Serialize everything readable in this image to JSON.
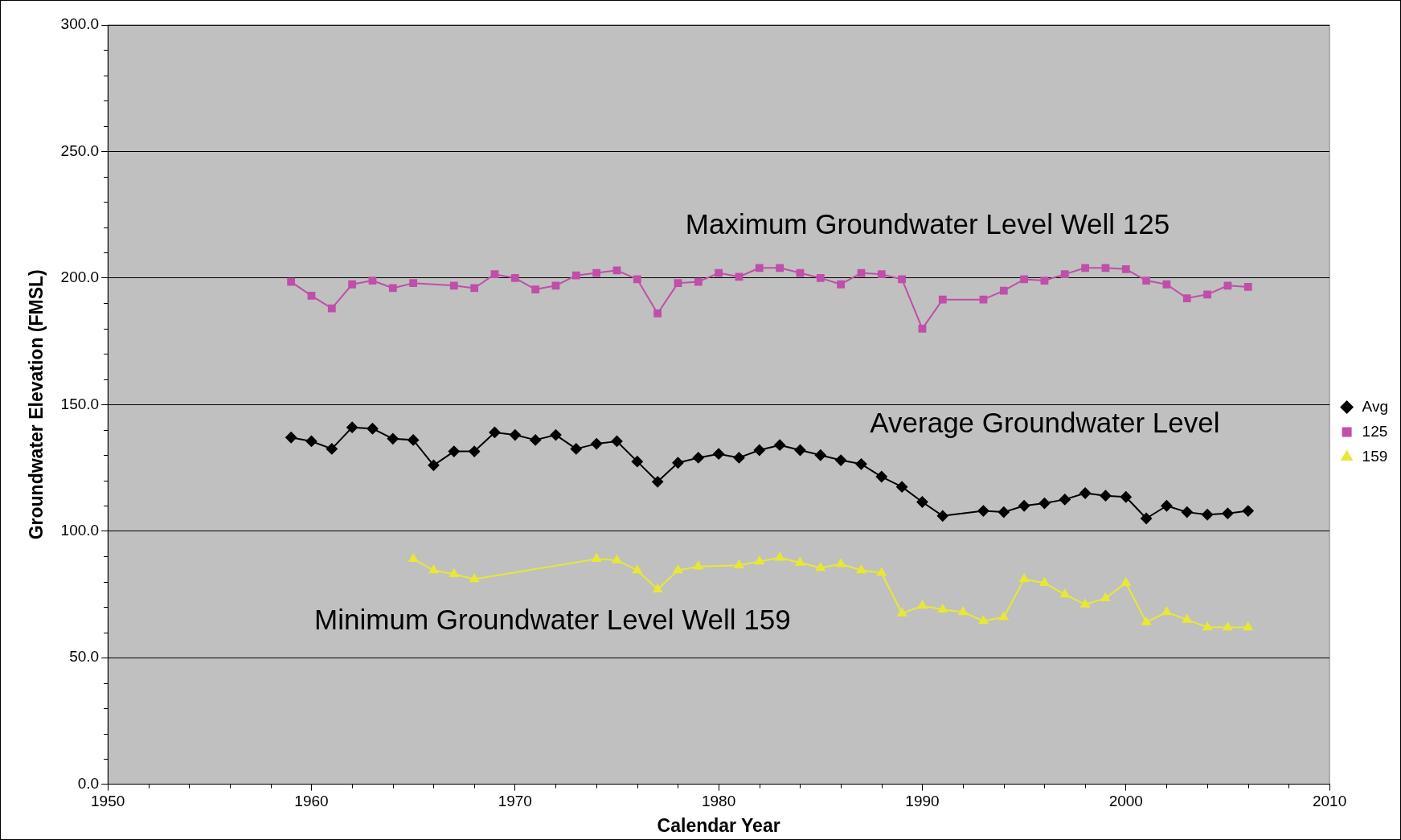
{
  "chart_data": {
    "type": "line",
    "xlabel": "Calendar Year",
    "ylabel": "Groundwater Elevation (FMSL)",
    "xlim": [
      1950,
      2010
    ],
    "xticks": [
      1950,
      1960,
      1970,
      1980,
      1990,
      2000,
      2010
    ],
    "ylim": [
      0,
      300
    ],
    "yticks": [
      {
        "value": 0,
        "label": "0.0"
      },
      {
        "value": 50,
        "label": "50.0"
      },
      {
        "value": 100,
        "label": "100.0"
      },
      {
        "value": 150,
        "label": "150.0"
      },
      {
        "value": 200,
        "label": "200.0"
      },
      {
        "value": 250,
        "label": "250.0"
      },
      {
        "value": 300,
        "label": "300.0"
      }
    ],
    "grid": "y",
    "legend": "right",
    "line_style": "solid",
    "series": [
      {
        "name": "Avg",
        "color": "#000000",
        "marker": "diamond",
        "x": [
          1959,
          1960,
          1961,
          1962,
          1963,
          1964,
          1965,
          1966,
          1967,
          1968,
          1969,
          1970,
          1971,
          1972,
          1973,
          1974,
          1975,
          1976,
          1977,
          1978,
          1979,
          1980,
          1981,
          1982,
          1983,
          1984,
          1985,
          1986,
          1987,
          1988,
          1989,
          1990,
          1991,
          1993,
          1994,
          1995,
          1996,
          1997,
          1998,
          1999,
          2000,
          2001,
          2002,
          2003,
          2004,
          2005,
          2006
        ],
        "values": [
          137,
          135.5,
          132.5,
          141,
          140.5,
          136.5,
          136,
          126,
          131.5,
          131.5,
          139,
          138,
          136,
          138,
          132.5,
          134.5,
          135.5,
          127.5,
          119.5,
          127,
          129,
          130.5,
          129,
          132,
          134,
          132,
          130,
          128,
          126.5,
          121.5,
          117.5,
          111.5,
          106,
          108,
          107.5,
          110,
          111,
          112.5,
          115,
          114,
          113.5,
          105,
          110,
          107.5,
          106.5,
          107,
          108
        ]
      },
      {
        "name": "125",
        "color": "#bf4fa8",
        "marker": "square",
        "x": [
          1959,
          1960,
          1961,
          1962,
          1963,
          1964,
          1965,
          1967,
          1968,
          1969,
          1970,
          1971,
          1972,
          1973,
          1974,
          1975,
          1976,
          1977,
          1978,
          1979,
          1980,
          1981,
          1982,
          1983,
          1984,
          1985,
          1986,
          1987,
          1988,
          1989,
          1990,
          1991,
          1993,
          1994,
          1995,
          1996,
          1997,
          1998,
          1999,
          2000,
          2001,
          2002,
          2003,
          2004,
          2005,
          2006
        ],
        "values": [
          198.5,
          193,
          188,
          197.5,
          199,
          196,
          198,
          197,
          196,
          201.5,
          200,
          195.5,
          197,
          201,
          202,
          203,
          199.5,
          186,
          198,
          198.5,
          202,
          200.5,
          204,
          204,
          202,
          200,
          197.5,
          202,
          201.5,
          199.5,
          180,
          191.5,
          191.5,
          195,
          199.5,
          199,
          201.5,
          204,
          204,
          203.5,
          199,
          197.5,
          192,
          193.5,
          197,
          196.5
        ]
      },
      {
        "name": "159",
        "color": "#e8e835",
        "marker": "triangle",
        "x": [
          1965,
          1966,
          1967,
          1968,
          1974,
          1975,
          1976,
          1977,
          1978,
          1979,
          1981,
          1982,
          1983,
          1984,
          1985,
          1986,
          1987,
          1988,
          1989,
          1990,
          1991,
          1992,
          1993,
          1994,
          1995,
          1996,
          1997,
          1998,
          1999,
          2000,
          2001,
          2002,
          2003,
          2004,
          2005,
          2006
        ],
        "values": [
          89,
          84.5,
          83,
          81,
          89,
          88.5,
          84.5,
          77,
          84.5,
          86,
          86.5,
          88,
          89.5,
          87.5,
          85.5,
          87,
          84.5,
          83.5,
          67.5,
          70.5,
          69,
          68,
          64.5,
          66,
          81,
          79.5,
          75,
          71,
          73.5,
          79.5,
          64,
          68,
          65,
          62,
          62,
          62
        ]
      }
    ],
    "annotations": [
      "Maximum Groundwater Level Well 125",
      "Average Groundwater Level",
      "Minimum Groundwater Level Well 159"
    ]
  }
}
